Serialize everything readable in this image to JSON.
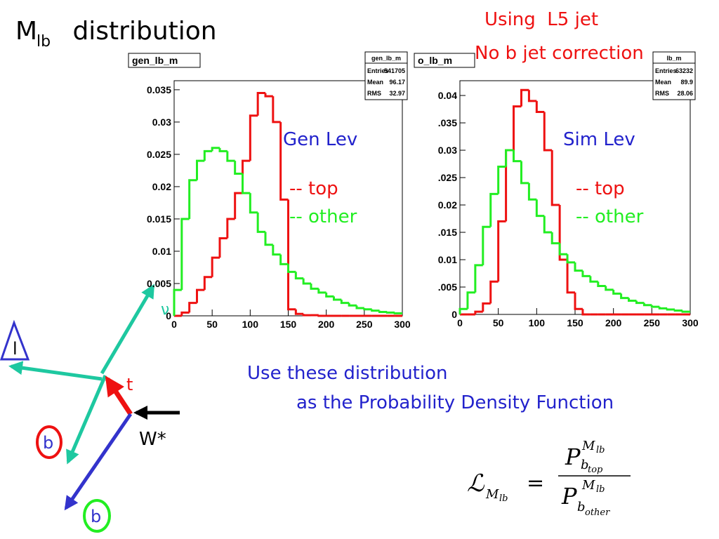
{
  "slide": {
    "title_main": "M",
    "title_sub": "lb",
    "title_rest": " distribution",
    "note1": "Using  L5 jet",
    "note2": "No b jet correction",
    "text1": "Use these distribution",
    "text2": "as the Probability Density Function",
    "formula": {
      "lhs": "ℒ",
      "lhs_sub": "M",
      "lhs_subsub": "lb",
      "eq": "=",
      "num_p": "P",
      "num_sub": "b",
      "num_subsub": "top",
      "num_sup": "M",
      "num_supsub": "lb",
      "den_p": "P",
      "den_sub": "b",
      "den_subsub": "other",
      "den_sup": "M",
      "den_supsub": "lb"
    },
    "diagram": {
      "lepton": "l",
      "top": "t",
      "b1": "b",
      "w": "W*",
      "b2": "b",
      "nu": "ν"
    }
  },
  "chart_data": [
    {
      "type": "histogram",
      "title": "gen_lb_m",
      "annotation": "Gen Lev",
      "stats": {
        "title": "gen_lb_m",
        "rows": [
          [
            "Entries",
            541705
          ],
          [
            "Mean",
            96.17
          ],
          [
            "RMS",
            32.97
          ]
        ]
      },
      "bins": [
        0,
        10,
        20,
        30,
        40,
        50,
        60,
        70,
        80,
        90,
        100,
        110,
        120,
        130,
        140,
        150,
        160,
        170,
        180,
        190,
        200,
        210,
        220,
        230,
        240,
        250,
        260,
        270,
        280,
        290,
        300
      ],
      "series": [
        {
          "name": "-- top",
          "color": "#ee1111",
          "values": [
            0,
            0.0005,
            0.002,
            0.004,
            0.006,
            0.009,
            0.012,
            0.015,
            0.019,
            0.024,
            0.031,
            0.0345,
            0.034,
            0.03,
            0.018,
            0.001,
            0.0003,
            0.0001,
            0.0001,
            0,
            0,
            0,
            0,
            0,
            0,
            0,
            0,
            0,
            0,
            0
          ]
        },
        {
          "name": "-- other",
          "color": "#22ee22",
          "values": [
            0.004,
            0.015,
            0.021,
            0.024,
            0.0255,
            0.026,
            0.0255,
            0.024,
            0.022,
            0.019,
            0.016,
            0.013,
            0.011,
            0.0095,
            0.008,
            0.0068,
            0.0058,
            0.005,
            0.0042,
            0.0036,
            0.003,
            0.0025,
            0.002,
            0.0016,
            0.0012,
            0.001,
            0.0008,
            0.0006,
            0.0005,
            0.0004
          ]
        }
      ],
      "xlim": [
        0,
        300
      ],
      "xticks": [
        0,
        50,
        100,
        150,
        200,
        250,
        300
      ],
      "ylim": [
        0,
        0.0364
      ],
      "yticks": [
        0,
        0.005,
        0.01,
        0.015,
        0.02,
        0.025,
        0.03,
        0.035
      ]
    },
    {
      "type": "histogram",
      "title": "o_lb_m",
      "annotation": "Sim Lev",
      "stats": {
        "title": "lb_m",
        "rows": [
          [
            "Entries",
            63232
          ],
          [
            "Mean",
            89.9
          ],
          [
            "RMS",
            28.06
          ]
        ]
      },
      "bins": [
        0,
        10,
        20,
        30,
        40,
        50,
        60,
        70,
        80,
        90,
        100,
        110,
        120,
        130,
        140,
        150,
        160,
        170,
        180,
        190,
        200,
        210,
        220,
        230,
        240,
        250,
        260,
        270,
        280,
        290,
        300
      ],
      "series": [
        {
          "name": "-- top",
          "color": "#ee1111",
          "values": [
            0,
            0,
            0.0005,
            0.002,
            0.006,
            0.017,
            0.03,
            0.038,
            0.041,
            0.039,
            0.037,
            0.03,
            0.02,
            0.01,
            0.004,
            0.001,
            0,
            0,
            0,
            0,
            0,
            0,
            0,
            0,
            0,
            0,
            0,
            0,
            0,
            0
          ]
        },
        {
          "name": "-- other",
          "color": "#22ee22",
          "values": [
            0.001,
            0.004,
            0.009,
            0.016,
            0.022,
            0.027,
            0.03,
            0.028,
            0.024,
            0.021,
            0.018,
            0.015,
            0.013,
            0.011,
            0.0095,
            0.008,
            0.007,
            0.006,
            0.0052,
            0.0045,
            0.0038,
            0.003,
            0.0025,
            0.0021,
            0.0017,
            0.0014,
            0.0011,
            0.0009,
            0.0007,
            0.0005
          ]
        }
      ],
      "xlim": [
        0,
        300
      ],
      "xticks": [
        0,
        50,
        100,
        150,
        200,
        250,
        300
      ],
      "ylim": [
        0,
        0.0427
      ],
      "yticks": [
        0,
        {
          "value": 0.005,
          "label": ".005"
        },
        0.01,
        {
          "value": 0.015,
          "label": ".015"
        },
        0.02,
        {
          "value": 0.025,
          "label": ".025"
        },
        0.03,
        {
          "value": 0.035,
          "label": ".035"
        },
        0.04
      ]
    }
  ]
}
